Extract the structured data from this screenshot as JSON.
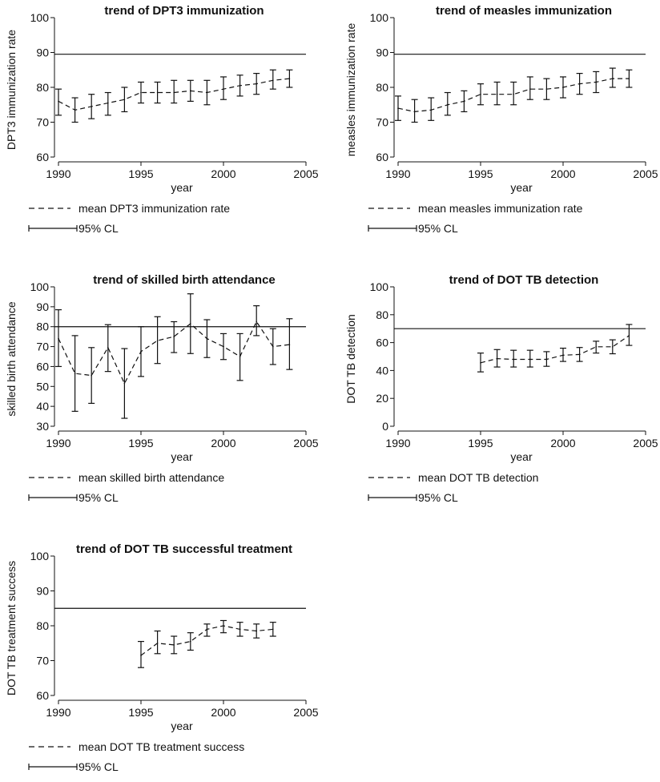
{
  "chart_data": [
    {
      "type": "line",
      "title": "trend of DPT3 immunization",
      "xlabel": "year",
      "ylabel": "DPT3 immunization rate",
      "xlim": [
        1990,
        2005
      ],
      "ylim": [
        60,
        100
      ],
      "xticks": [
        1990,
        1995,
        2000,
        2005
      ],
      "yticks": [
        60,
        70,
        80,
        90,
        100
      ],
      "reference_line": 89.5,
      "grid": false,
      "x": [
        1990,
        1991,
        1992,
        1993,
        1994,
        1995,
        1996,
        1997,
        1998,
        1999,
        2000,
        2001,
        2002,
        2003,
        2004
      ],
      "series": [
        {
          "name": "mean DPT3 immunization rate",
          "style": "dashed",
          "values": [
            76,
            73.5,
            74.5,
            75.5,
            76.5,
            78.5,
            78.5,
            78.5,
            79,
            78.5,
            79.5,
            80.5,
            81,
            82,
            82.5
          ]
        },
        {
          "name": "95% CL",
          "style": "error-bar",
          "lower": [
            72,
            70,
            71,
            72,
            73,
            75.5,
            75.5,
            75.5,
            76,
            75,
            76.5,
            77.5,
            78,
            79.5,
            80
          ],
          "upper": [
            79.5,
            77,
            78,
            78.5,
            80,
            81.5,
            81.5,
            82,
            82,
            82,
            83,
            83.5,
            84,
            85,
            85
          ]
        }
      ],
      "legend": {
        "position": "bottom",
        "entries": [
          "mean DPT3 immunization rate",
          "95% CL"
        ]
      }
    },
    {
      "type": "line",
      "title": "trend of measles immunization",
      "xlabel": "year",
      "ylabel": "measles immunization rate",
      "xlim": [
        1990,
        2005
      ],
      "ylim": [
        60,
        100
      ],
      "xticks": [
        1990,
        1995,
        2000,
        2005
      ],
      "yticks": [
        60,
        70,
        80,
        90,
        100
      ],
      "reference_line": 89.5,
      "grid": false,
      "x": [
        1990,
        1991,
        1992,
        1993,
        1994,
        1995,
        1996,
        1997,
        1998,
        1999,
        2000,
        2001,
        2002,
        2003,
        2004
      ],
      "series": [
        {
          "name": "mean measles immunization rate",
          "style": "dashed",
          "values": [
            74,
            73,
            73.5,
            75,
            76,
            78,
            78,
            78,
            79.5,
            79.5,
            80,
            81,
            81.5,
            82.5,
            82.5
          ]
        },
        {
          "name": "95% CL",
          "style": "error-bar",
          "lower": [
            70.5,
            70,
            70.5,
            72,
            73,
            75,
            75,
            75,
            76.5,
            76.5,
            77,
            78,
            78.5,
            80,
            80
          ],
          "upper": [
            77.5,
            76.5,
            77,
            78.5,
            79,
            81,
            81.5,
            81.5,
            83,
            82.5,
            83,
            84,
            84.5,
            85.5,
            85
          ]
        }
      ],
      "legend": {
        "position": "bottom",
        "entries": [
          "mean measles immunization rate",
          "95% CL"
        ]
      }
    },
    {
      "type": "line",
      "title": "trend of skilled birth attendance",
      "xlabel": "year",
      "ylabel": "skilled birth attendance",
      "xlim": [
        1990,
        2005
      ],
      "ylim": [
        30,
        100
      ],
      "xticks": [
        1990,
        1995,
        2000,
        2005
      ],
      "yticks": [
        30,
        40,
        50,
        60,
        70,
        80,
        90,
        100
      ],
      "reference_line": 80,
      "grid": false,
      "x": [
        1990,
        1991,
        1992,
        1993,
        1994,
        1995,
        1996,
        1997,
        1998,
        1999,
        2000,
        2001,
        2002,
        2003,
        2004
      ],
      "series": [
        {
          "name": "mean skilled birth attendance",
          "style": "dashed",
          "values": [
            74,
            56.5,
            55.5,
            69.5,
            51.5,
            67.5,
            73,
            75,
            81.5,
            74,
            70,
            65,
            82.5,
            70,
            71
          ]
        },
        {
          "name": "95% CL",
          "style": "error-bar",
          "lower": [
            60,
            37.5,
            41.5,
            57.5,
            34,
            55,
            61.5,
            67,
            66.5,
            64.5,
            63.5,
            53,
            75.5,
            61,
            58.5
          ],
          "upper": [
            88.5,
            75.5,
            69.5,
            81,
            69,
            80,
            85,
            82.5,
            96.5,
            83.5,
            76.5,
            76.5,
            90.5,
            79,
            84
          ]
        }
      ],
      "legend": {
        "position": "bottom",
        "entries": [
          "mean skilled birth attendance",
          "95% CL"
        ]
      }
    },
    {
      "type": "line",
      "title": "trend of DOT TB detection",
      "xlabel": "year",
      "ylabel": "DOT TB detection",
      "xlim": [
        1990,
        2005
      ],
      "ylim": [
        0,
        100
      ],
      "xticks": [
        1990,
        1995,
        2000,
        2005
      ],
      "yticks": [
        0,
        20,
        40,
        60,
        80,
        100
      ],
      "reference_line": 70,
      "grid": false,
      "x": [
        1995,
        1996,
        1997,
        1998,
        1999,
        2000,
        2001,
        2002,
        2003,
        2004
      ],
      "series": [
        {
          "name": "mean DOT TB detection",
          "style": "dashed",
          "values": [
            45.5,
            48.5,
            48,
            48,
            48,
            51,
            51.5,
            57,
            57,
            65
          ]
        },
        {
          "name": "95% CL",
          "style": "error-bar",
          "lower": [
            39,
            42.5,
            42.5,
            42.5,
            43,
            46.5,
            46.5,
            52.5,
            52,
            58
          ],
          "upper": [
            52.5,
            55,
            54.5,
            54.5,
            53.5,
            56,
            56.5,
            61,
            62,
            73
          ]
        }
      ],
      "legend": {
        "position": "bottom",
        "entries": [
          "mean DOT TB detection",
          "95% CL"
        ]
      }
    },
    {
      "type": "line",
      "title": "trend of DOT TB successful treatment",
      "xlabel": "year",
      "ylabel": "DOT TB treatment success",
      "xlim": [
        1990,
        2005
      ],
      "ylim": [
        60,
        100
      ],
      "xticks": [
        1990,
        1995,
        2000,
        2005
      ],
      "yticks": [
        60,
        70,
        80,
        90,
        100
      ],
      "reference_line": 85,
      "grid": false,
      "x": [
        1995,
        1996,
        1997,
        1998,
        1999,
        2000,
        2001,
        2002,
        2003
      ],
      "series": [
        {
          "name": "mean DOT TB treatment success",
          "style": "dashed",
          "values": [
            71.5,
            75,
            74.5,
            75.5,
            79,
            80,
            79,
            78.5,
            79
          ]
        },
        {
          "name": "95% CL",
          "style": "error-bar",
          "lower": [
            68,
            72,
            72,
            73,
            77,
            78,
            77,
            76.5,
            77
          ],
          "upper": [
            75.5,
            78.5,
            77,
            78,
            80.5,
            81.5,
            81,
            80.5,
            81
          ]
        }
      ],
      "legend": {
        "position": "bottom",
        "entries": [
          "mean DOT TB treatment success",
          "95% CL"
        ]
      }
    }
  ]
}
